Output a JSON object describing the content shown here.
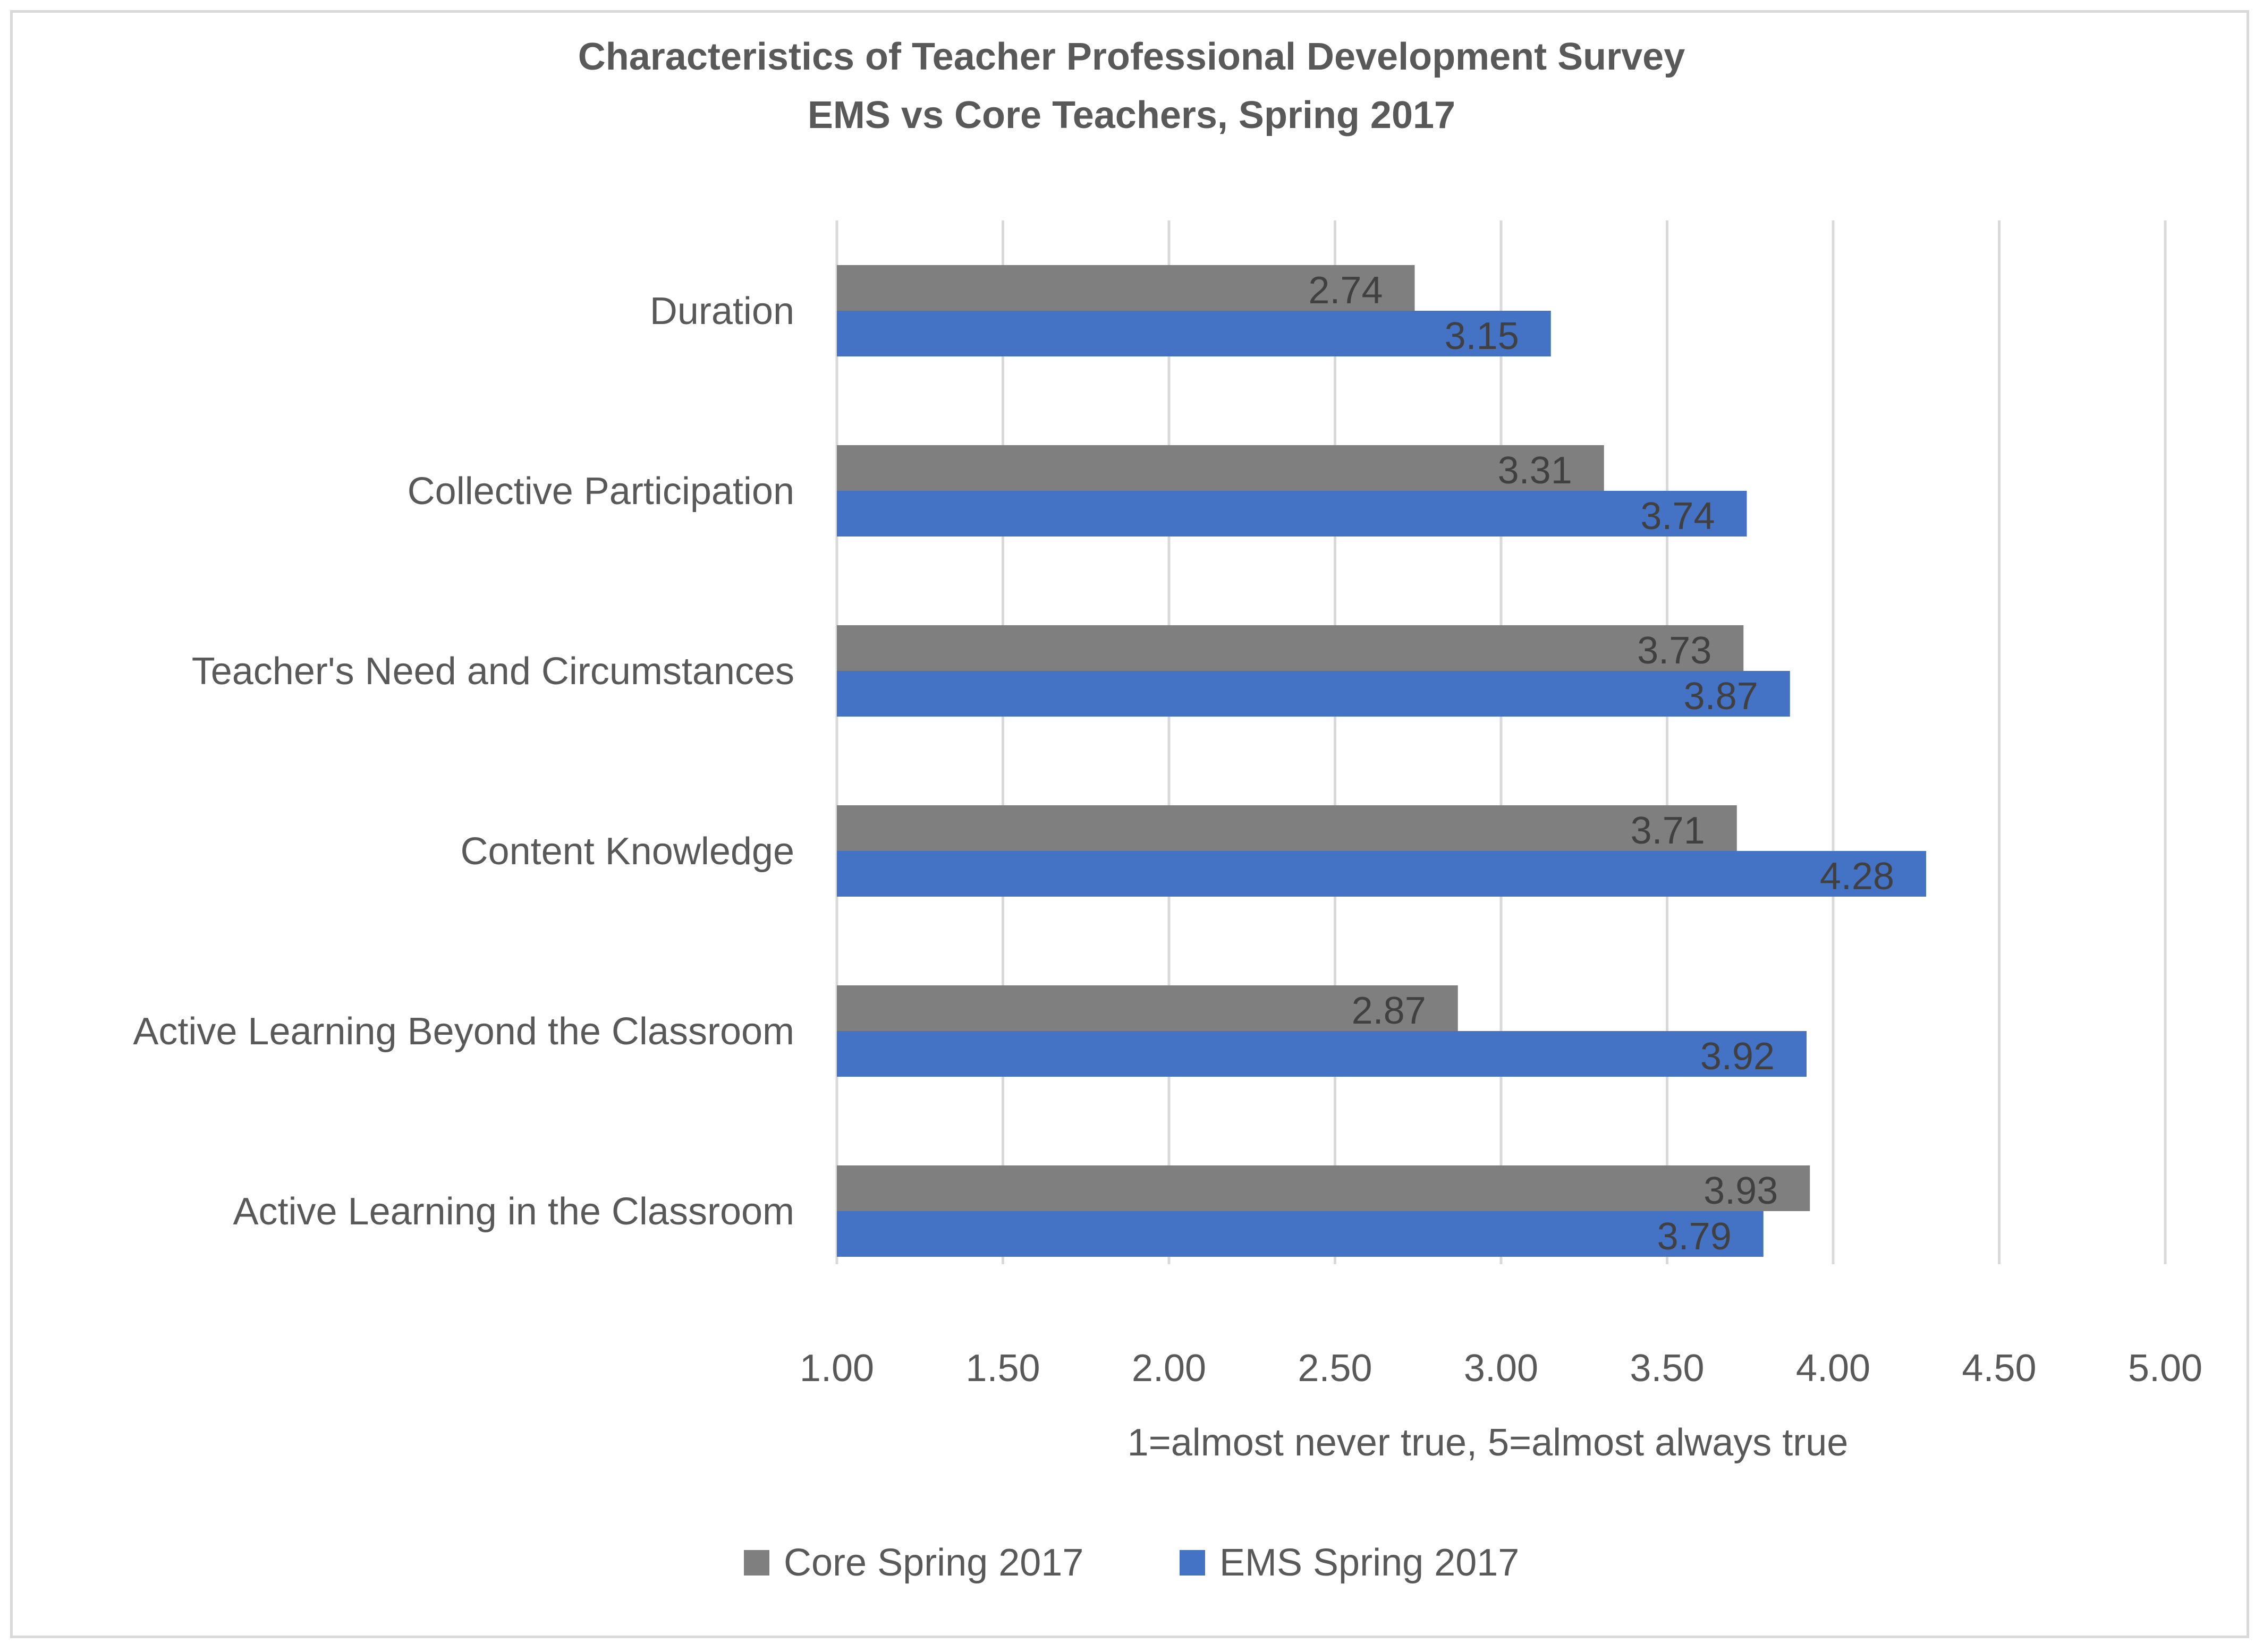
{
  "chart_data": {
    "type": "bar",
    "orientation": "horizontal",
    "title": "Characteristics of Teacher Professional Development Survey",
    "subtitle": "EMS vs Core Teachers, Spring 2017",
    "categories": [
      "Duration",
      "Collective Participation",
      "Teacher's Need and Circumstances",
      "Content Knowledge",
      "Active Learning Beyond the Classroom",
      "Active Learning in the Classroom"
    ],
    "series": [
      {
        "name": "Core Spring 2017",
        "color": "#7f7f7f",
        "values": [
          2.74,
          3.31,
          3.73,
          3.71,
          2.87,
          3.93
        ]
      },
      {
        "name": "EMS Spring 2017",
        "color": "#4472c4",
        "values": [
          3.15,
          3.74,
          3.87,
          4.28,
          3.92,
          3.79
        ]
      }
    ],
    "xlabel": "1=almost never true, 5=almost always true",
    "ylabel": "",
    "xlim": [
      1.0,
      5.0
    ],
    "xticks": [
      "1.00",
      "1.50",
      "2.00",
      "2.50",
      "3.00",
      "3.50",
      "4.00",
      "4.50",
      "5.00"
    ],
    "grid": true,
    "legend": "bottom"
  }
}
